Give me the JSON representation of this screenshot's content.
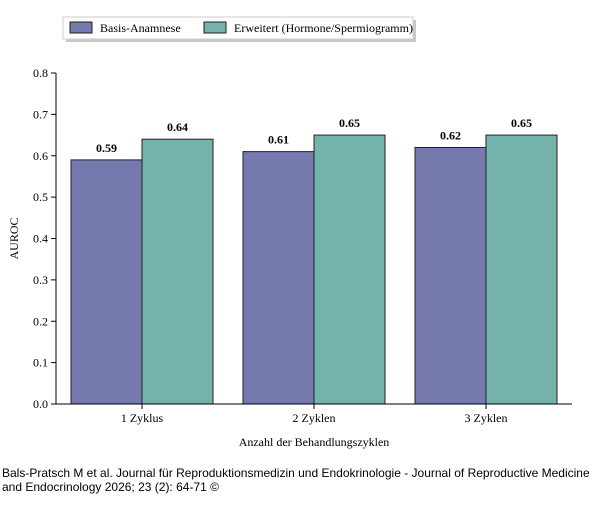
{
  "chart_data": {
    "type": "bar",
    "categories": [
      "1 Zyklus",
      "2 Zyklen",
      "3 Zyklen"
    ],
    "series": [
      {
        "name": "Basis-Anamnese",
        "values": [
          0.59,
          0.61,
          0.62
        ],
        "color": "#7579ad"
      },
      {
        "name": "Erweitert (Hormone/Spermiogramm)",
        "values": [
          0.64,
          0.65,
          0.65
        ],
        "color": "#74b3ac"
      }
    ],
    "xlabel": "Anzahl der Behandlungszyklen",
    "ylabel": "AUROC",
    "ylim": [
      0,
      0.8
    ],
    "yticks": [
      "0.0",
      "0.1",
      "0.2",
      "0.3",
      "0.4",
      "0.5",
      "0.6",
      "0.7",
      "0.8"
    ],
    "data_labels": [
      [
        "0.59",
        "0.61",
        "0.62"
      ],
      [
        "0.64",
        "0.65",
        "0.65"
      ]
    ],
    "legend_position": "top-left",
    "grid": false
  },
  "caption": "Bals-Pratsch M et al. Journal für Reproduktionsmedizin und Endokrinologie - Journal of Reproductive Medicine and Endocrinology 2026; 23 (2): 64-71 ©"
}
